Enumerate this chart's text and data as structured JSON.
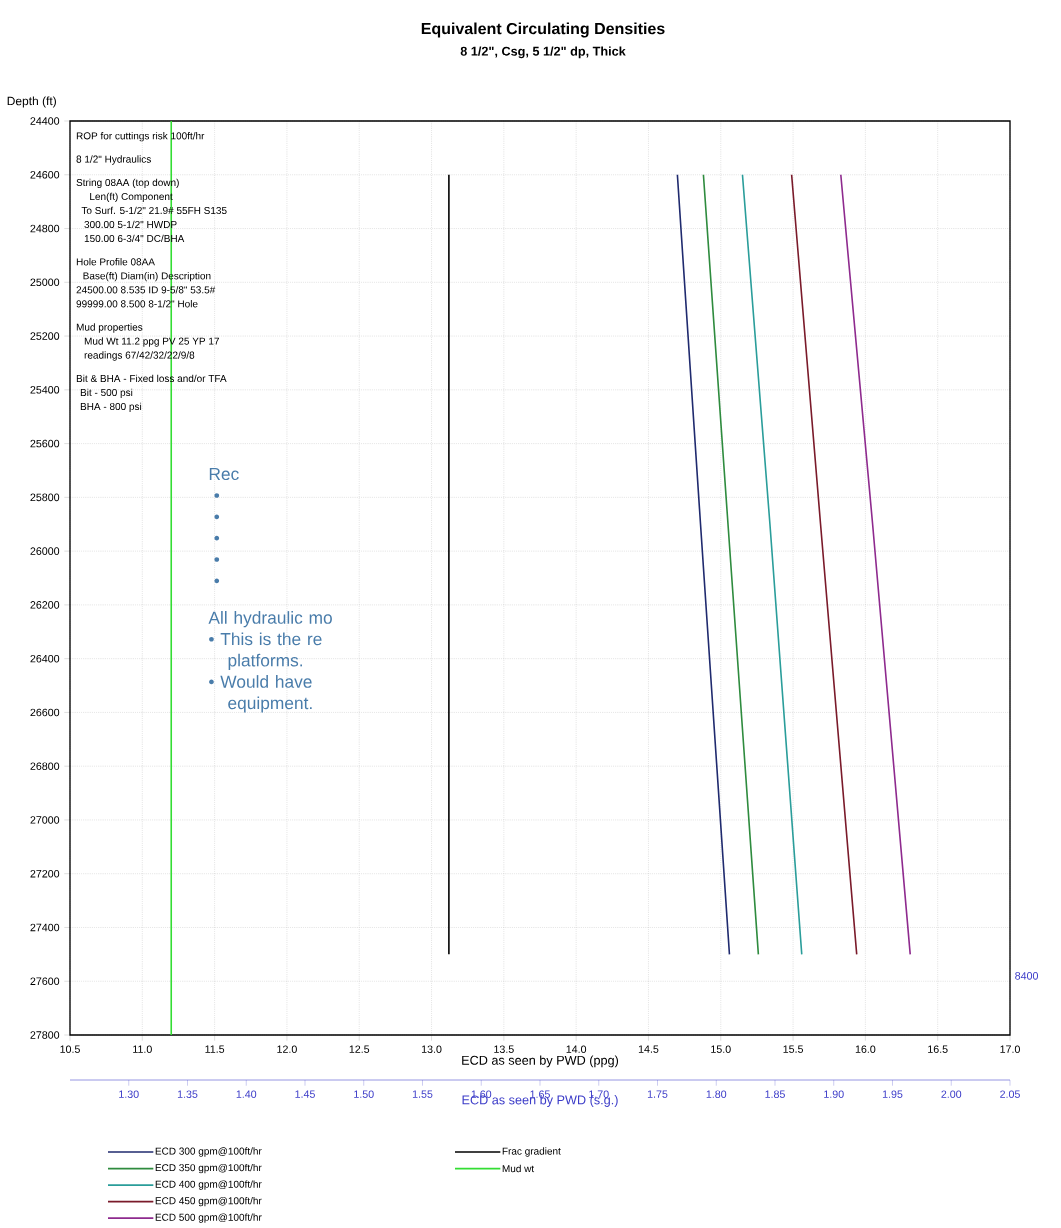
{
  "chart_data": {
    "type": "line",
    "title": "Equivalent Circulating Densities",
    "subtitle": "8 1/2\", Csg, 5 1/2\" dp, Thick",
    "xlabel": "ECD as seen by PWD (ppg)",
    "x2label": "ECD as seen by PWD (s.g.)",
    "ylabel": "Depth (ft)",
    "xlim": [
      10.5,
      17
    ],
    "xticks": [
      {
        "value": 10.5,
        "label": "10.5"
      },
      {
        "value": 11,
        "label": "11.0"
      },
      {
        "value": 11.5,
        "label": "11.5"
      },
      {
        "value": 12,
        "label": "12.0"
      },
      {
        "value": 12.5,
        "label": "12.5"
      },
      {
        "value": 13,
        "label": "13.0"
      },
      {
        "value": 13.5,
        "label": "13.5"
      },
      {
        "value": 14,
        "label": "14.0"
      },
      {
        "value": 14.5,
        "label": "14.5"
      },
      {
        "value": 15,
        "label": "15.0"
      },
      {
        "value": 15.5,
        "label": "15.5"
      },
      {
        "value": 16,
        "label": "16.0"
      },
      {
        "value": 16.5,
        "label": "16.5"
      },
      {
        "value": 17,
        "label": "17.0"
      }
    ],
    "ylim": [
      27800,
      24400
    ],
    "yticks": [
      24400,
      24600,
      24800,
      25000,
      25200,
      25400,
      25600,
      25800,
      26000,
      26200,
      26400,
      26600,
      26800,
      27000,
      27200,
      27400,
      27600,
      27800
    ],
    "x2lim": [
      1.25,
      2.05
    ],
    "x2ticks": [
      {
        "value": 1.3,
        "label": "1.30"
      },
      {
        "value": 1.35,
        "label": "1.35"
      },
      {
        "value": 1.4,
        "label": "1.40"
      },
      {
        "value": 1.45,
        "label": "1.45"
      },
      {
        "value": 1.5,
        "label": "1.50"
      },
      {
        "value": 1.55,
        "label": "1.55"
      },
      {
        "value": 1.6,
        "label": "1.60"
      },
      {
        "value": 1.65,
        "label": "1.65"
      },
      {
        "value": 1.7,
        "label": "1.70"
      },
      {
        "value": 1.75,
        "label": "1.75"
      },
      {
        "value": 1.8,
        "label": "1.80"
      },
      {
        "value": 1.85,
        "label": "1.85"
      },
      {
        "value": 1.9,
        "label": "1.90"
      },
      {
        "value": 1.95,
        "label": "1.95"
      },
      {
        "value": 2.0,
        "label": "2.00"
      },
      {
        "value": 2.05,
        "label": "2.05"
      }
    ],
    "grid": true,
    "legend": "bottom left",
    "marker": "none",
    "line_style": "solid",
    "series": [
      {
        "name": "ECD 300 gpm@100ft/hr",
        "color": "#1f2a6e",
        "x": [
          14.7,
          14.86,
          15.06
        ],
        "values": [
          24600,
          25900,
          27500
        ]
      },
      {
        "name": "ECD 350 gpm@100ft/hr",
        "color": "#2e8b3e",
        "x": [
          14.88,
          15.05,
          15.26
        ],
        "values": [
          24600,
          25900,
          27500
        ]
      },
      {
        "name": "ECD 400 gpm@100ft/hr",
        "color": "#2a9d9a",
        "x": [
          15.15,
          15.34,
          15.56
        ],
        "values": [
          24600,
          25900,
          27500
        ]
      },
      {
        "name": "ECD 450 gpm@100ft/hr",
        "color": "#7a1a2a",
        "x": [
          15.49,
          15.69,
          15.94
        ],
        "values": [
          24600,
          25900,
          27500
        ]
      },
      {
        "name": "ECD 500 gpm@100ft/hr",
        "color": "#8e2a8e",
        "x": [
          15.83,
          16.05,
          16.31
        ],
        "values": [
          24600,
          25900,
          27500
        ]
      },
      {
        "name": "Frac gradient",
        "color": "#000000",
        "x": [
          13.12,
          13.12
        ],
        "values": [
          24600,
          27500
        ]
      },
      {
        "name": "Mud wt",
        "color": "#33dd33",
        "x": [
          11.2,
          11.2
        ],
        "values": [
          24400,
          27800
        ]
      }
    ],
    "annotations": [
      "ROP for cuttings risk 100ft/hr",
      "8 1/2\" Hydraulics",
      "String 08AA   (top down)",
      "Len(ft) Component",
      "To Surf.  5-1/2\" 21.9# 55FH S135",
      "300.00 5-1/2\" HWDP",
      "150.00 6-3/4\" DC/BHA",
      "Hole Profile 08AA",
      "Base(ft)  Diam(in) Description",
      "24500.00     8.535  ID 9-5/8\" 53.5#",
      "99999.00     8.500  8-1/2\" Hole",
      "Mud properties",
      "Mud Wt 11.2 ppg PV 25 YP 17",
      "readings 67/42/32/22/9/8",
      "Bit & BHA - Fixed loss and/or TFA",
      "Bit - 500 psi",
      "BHA - 800 psi",
      "8400",
      "Rec",
      "•",
      "•",
      "•",
      "•",
      "•",
      "All hydraulic mo",
      "• This is the re",
      "platforms.",
      "• Would have",
      "equipment."
    ]
  }
}
